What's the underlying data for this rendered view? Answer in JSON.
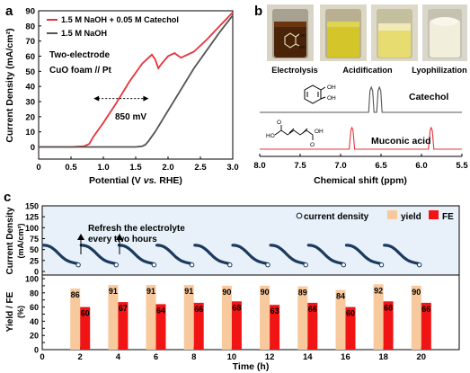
{
  "panels": {
    "a": {
      "letter": "a"
    },
    "b": {
      "letter": "b"
    },
    "c": {
      "letter": "c"
    }
  },
  "colors": {
    "red": "#e8313a",
    "gray": "#555555",
    "navy": "#1b3a5c",
    "peach": "#f7c99c",
    "fe_red": "#f01414",
    "band": "#e8f1f9",
    "nmr_gray": "#555555"
  },
  "chart_data": [
    {
      "panel": "a",
      "type": "line",
      "xlabel_parts": [
        "Potential (V ",
        "vs.",
        " RHE)"
      ],
      "ylabel": "Current Density (mA/cm²)",
      "xlim": [
        0,
        3.0
      ],
      "ylim": [
        -8,
        90
      ],
      "xticks": [
        "0",
        "0.5",
        "1.0",
        "1.5",
        "2.0",
        "2.5",
        "3.0"
      ],
      "yticks": [
        "0",
        "10",
        "20",
        "30",
        "40",
        "50",
        "60",
        "70",
        "80",
        "90"
      ],
      "series": [
        {
          "name": "1.5 M NaOH + 0.05 M Catechol",
          "color": "#e8313a",
          "x": [
            0,
            0.5,
            0.7,
            0.78,
            0.85,
            1.0,
            1.2,
            1.4,
            1.6,
            1.75,
            1.8,
            1.85,
            1.9,
            2.0,
            2.1,
            2.2,
            2.4,
            2.6,
            2.8,
            3.0
          ],
          "y": [
            0,
            0,
            0.5,
            2,
            7,
            16,
            29,
            43,
            55,
            61,
            58,
            52,
            55,
            60,
            62,
            59,
            63,
            71,
            80,
            89
          ]
        },
        {
          "name": "1.5 M NaOH",
          "color": "#555555",
          "x": [
            0,
            1.0,
            1.5,
            1.6,
            1.65,
            1.7,
            1.8,
            2.0,
            2.2,
            2.4,
            2.6,
            2.8,
            3.0
          ],
          "y": [
            0,
            0,
            0,
            0.5,
            1.5,
            4,
            10,
            24,
            38,
            52,
            64,
            76,
            87
          ]
        }
      ],
      "legend": [
        "1.5 M NaOH + 0.05 M Catechol",
        "1.5 M NaOH"
      ],
      "annotation_text": [
        "Two-electrode",
        "CuO foam // Pt"
      ],
      "arrow_label": "850 mV",
      "arrow_range_x": [
        0.85,
        1.7
      ],
      "arrow_y": 32
    },
    {
      "panel": "b",
      "type": "line",
      "photo_captions": [
        "Electrolysis",
        "Acidification",
        "Lyophilization"
      ],
      "xlabel": "Chemical shift (ppm)",
      "xlim": [
        8.0,
        5.5
      ],
      "xticks": [
        "8.0",
        "7.5",
        "7.0",
        "6.5",
        "6.0",
        "5.5"
      ],
      "series": [
        {
          "name": "Catechol",
          "color": "#555555",
          "peaks_ppm": [
            6.62,
            6.52
          ]
        },
        {
          "name": "Muconic acid",
          "color": "#e8313a",
          "peaks_ppm": [
            6.86,
            5.88
          ]
        }
      ],
      "labels": [
        "Catechol",
        "Muconic acid"
      ]
    },
    {
      "panel": "c",
      "type": "bar",
      "xlabel": "Time (h)",
      "ylabel_top": [
        "Current Density",
        "(mA/cm²)"
      ],
      "ylabel_bottom": [
        "Yield / FE",
        "(%)"
      ],
      "xlim": [
        0,
        22
      ],
      "xticks": [
        "0",
        "2",
        "4",
        "6",
        "8",
        "10",
        "12",
        "14",
        "16",
        "18",
        "20"
      ],
      "top_ylim": [
        0,
        150
      ],
      "top_yticks": [
        "0",
        "25",
        "50",
        "75",
        "100",
        "125",
        "150"
      ],
      "bottom_ylim": [
        0,
        100
      ],
      "bottom_yticks": [
        "0",
        "10",
        "20",
        "30",
        "40",
        "50",
        "60",
        "70",
        "80",
        "90",
        "100"
      ],
      "note": [
        "Refresh the electrolyte",
        "every two hours"
      ],
      "legend": [
        "current density",
        "yield",
        "FE"
      ],
      "x": [
        2,
        4,
        6,
        8,
        10,
        12,
        14,
        16,
        18,
        20
      ],
      "yield": [
        86,
        91,
        91,
        91,
        90,
        90,
        89,
        84,
        92,
        90
      ],
      "fe": [
        60,
        67,
        64,
        66,
        68,
        63,
        66,
        60,
        68,
        66
      ],
      "current_start": 60,
      "current_end": 15
    }
  ]
}
